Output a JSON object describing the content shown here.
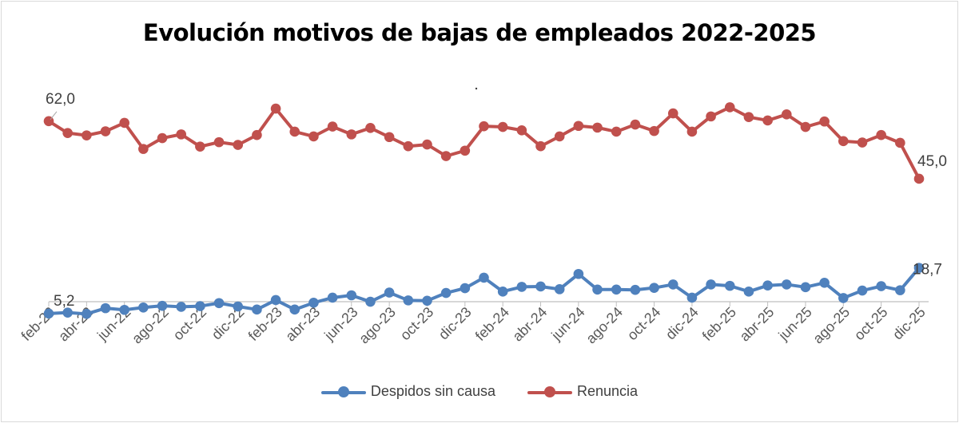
{
  "chart_data": {
    "type": "line",
    "title": "Evolución motivos de bajas de empleados 2022-2025",
    "xlabel": "",
    "ylabel": "",
    "x": [
      "feb-22",
      "mar-22",
      "abr-22",
      "may-22",
      "jun-22",
      "jul-22",
      "ago-22",
      "sep-22",
      "oct-22",
      "nov-22",
      "dic-22",
      "ene-23",
      "feb-23",
      "mar-23",
      "abr-23",
      "may-23",
      "jun-23",
      "jul-23",
      "ago-23",
      "sep-23",
      "oct-23",
      "nov-23",
      "dic-23",
      "ene-24",
      "feb-24",
      "mar-24",
      "abr-24",
      "may-24",
      "jun-24",
      "jul-24",
      "ago-24",
      "sep-24",
      "oct-24",
      "nov-24",
      "dic-24",
      "ene-25",
      "feb-25",
      "mar-25",
      "abr-25",
      "may-25",
      "jun-25",
      "jul-25",
      "ago-25",
      "sep-25",
      "oct-25",
      "nov-25",
      "dic-25"
    ],
    "tick_labels": [
      "feb-22",
      "abr-22",
      "jun-22",
      "ago-22",
      "oct-22",
      "dic-22",
      "feb-23",
      "abr-23",
      "jun-23",
      "ago-23",
      "oct-23",
      "dic-23",
      "feb-24",
      "abr-24",
      "jun-24",
      "ago-24",
      "oct-24",
      "dic-24",
      "feb-25",
      "abr-25",
      "jun-25",
      "ago-25",
      "oct-25",
      "dic-25"
    ],
    "ylim": [
      0,
      70
    ],
    "grid": false,
    "legend_position": "bottom",
    "series": [
      {
        "name": "Despidos sin causa",
        "color": "#4f81bd",
        "values": [
          5.2,
          5.5,
          5.1,
          6.8,
          6.3,
          7.0,
          7.5,
          7.2,
          7.4,
          8.3,
          7.3,
          6.4,
          9.2,
          6.4,
          8.4,
          9.9,
          10.6,
          8.7,
          11.4,
          9.1,
          9.0,
          11.3,
          12.7,
          15.8,
          11.7,
          13.1,
          13.2,
          12.4,
          16.9,
          12.3,
          12.3,
          12.2,
          12.8,
          13.8,
          9.9,
          13.8,
          13.4,
          11.7,
          13.5,
          13.8,
          13.0,
          14.3,
          9.8,
          12.0,
          13.3,
          12.1,
          18.7
        ]
      },
      {
        "name": "Renuncia",
        "color": "#c0504d",
        "values": [
          62.0,
          58.5,
          57.8,
          59.0,
          61.5,
          53.8,
          57.0,
          58.1,
          54.5,
          55.8,
          55.0,
          57.9,
          65.7,
          58.9,
          57.5,
          60.4,
          58.1,
          60.0,
          57.3,
          54.6,
          55.1,
          51.7,
          53.3,
          60.5,
          60.3,
          59.3,
          54.6,
          57.5,
          60.6,
          60.1,
          58.9,
          61.0,
          59.1,
          64.3,
          58.9,
          63.4,
          66.1,
          63.2,
          62.2,
          64.0,
          60.3,
          61.9,
          56.1,
          55.7,
          57.9,
          55.6,
          45.0
        ]
      }
    ],
    "annotations": [
      {
        "series": "Renuncia",
        "x": "feb-22",
        "text": "62,0"
      },
      {
        "series": "Renuncia",
        "x": "dic-25",
        "text": "45,0"
      },
      {
        "series": "Despidos sin causa",
        "x": "feb-22",
        "text": "5,2"
      },
      {
        "series": "Despidos sin causa",
        "x": "dic-25",
        "text": "18,7"
      }
    ]
  }
}
